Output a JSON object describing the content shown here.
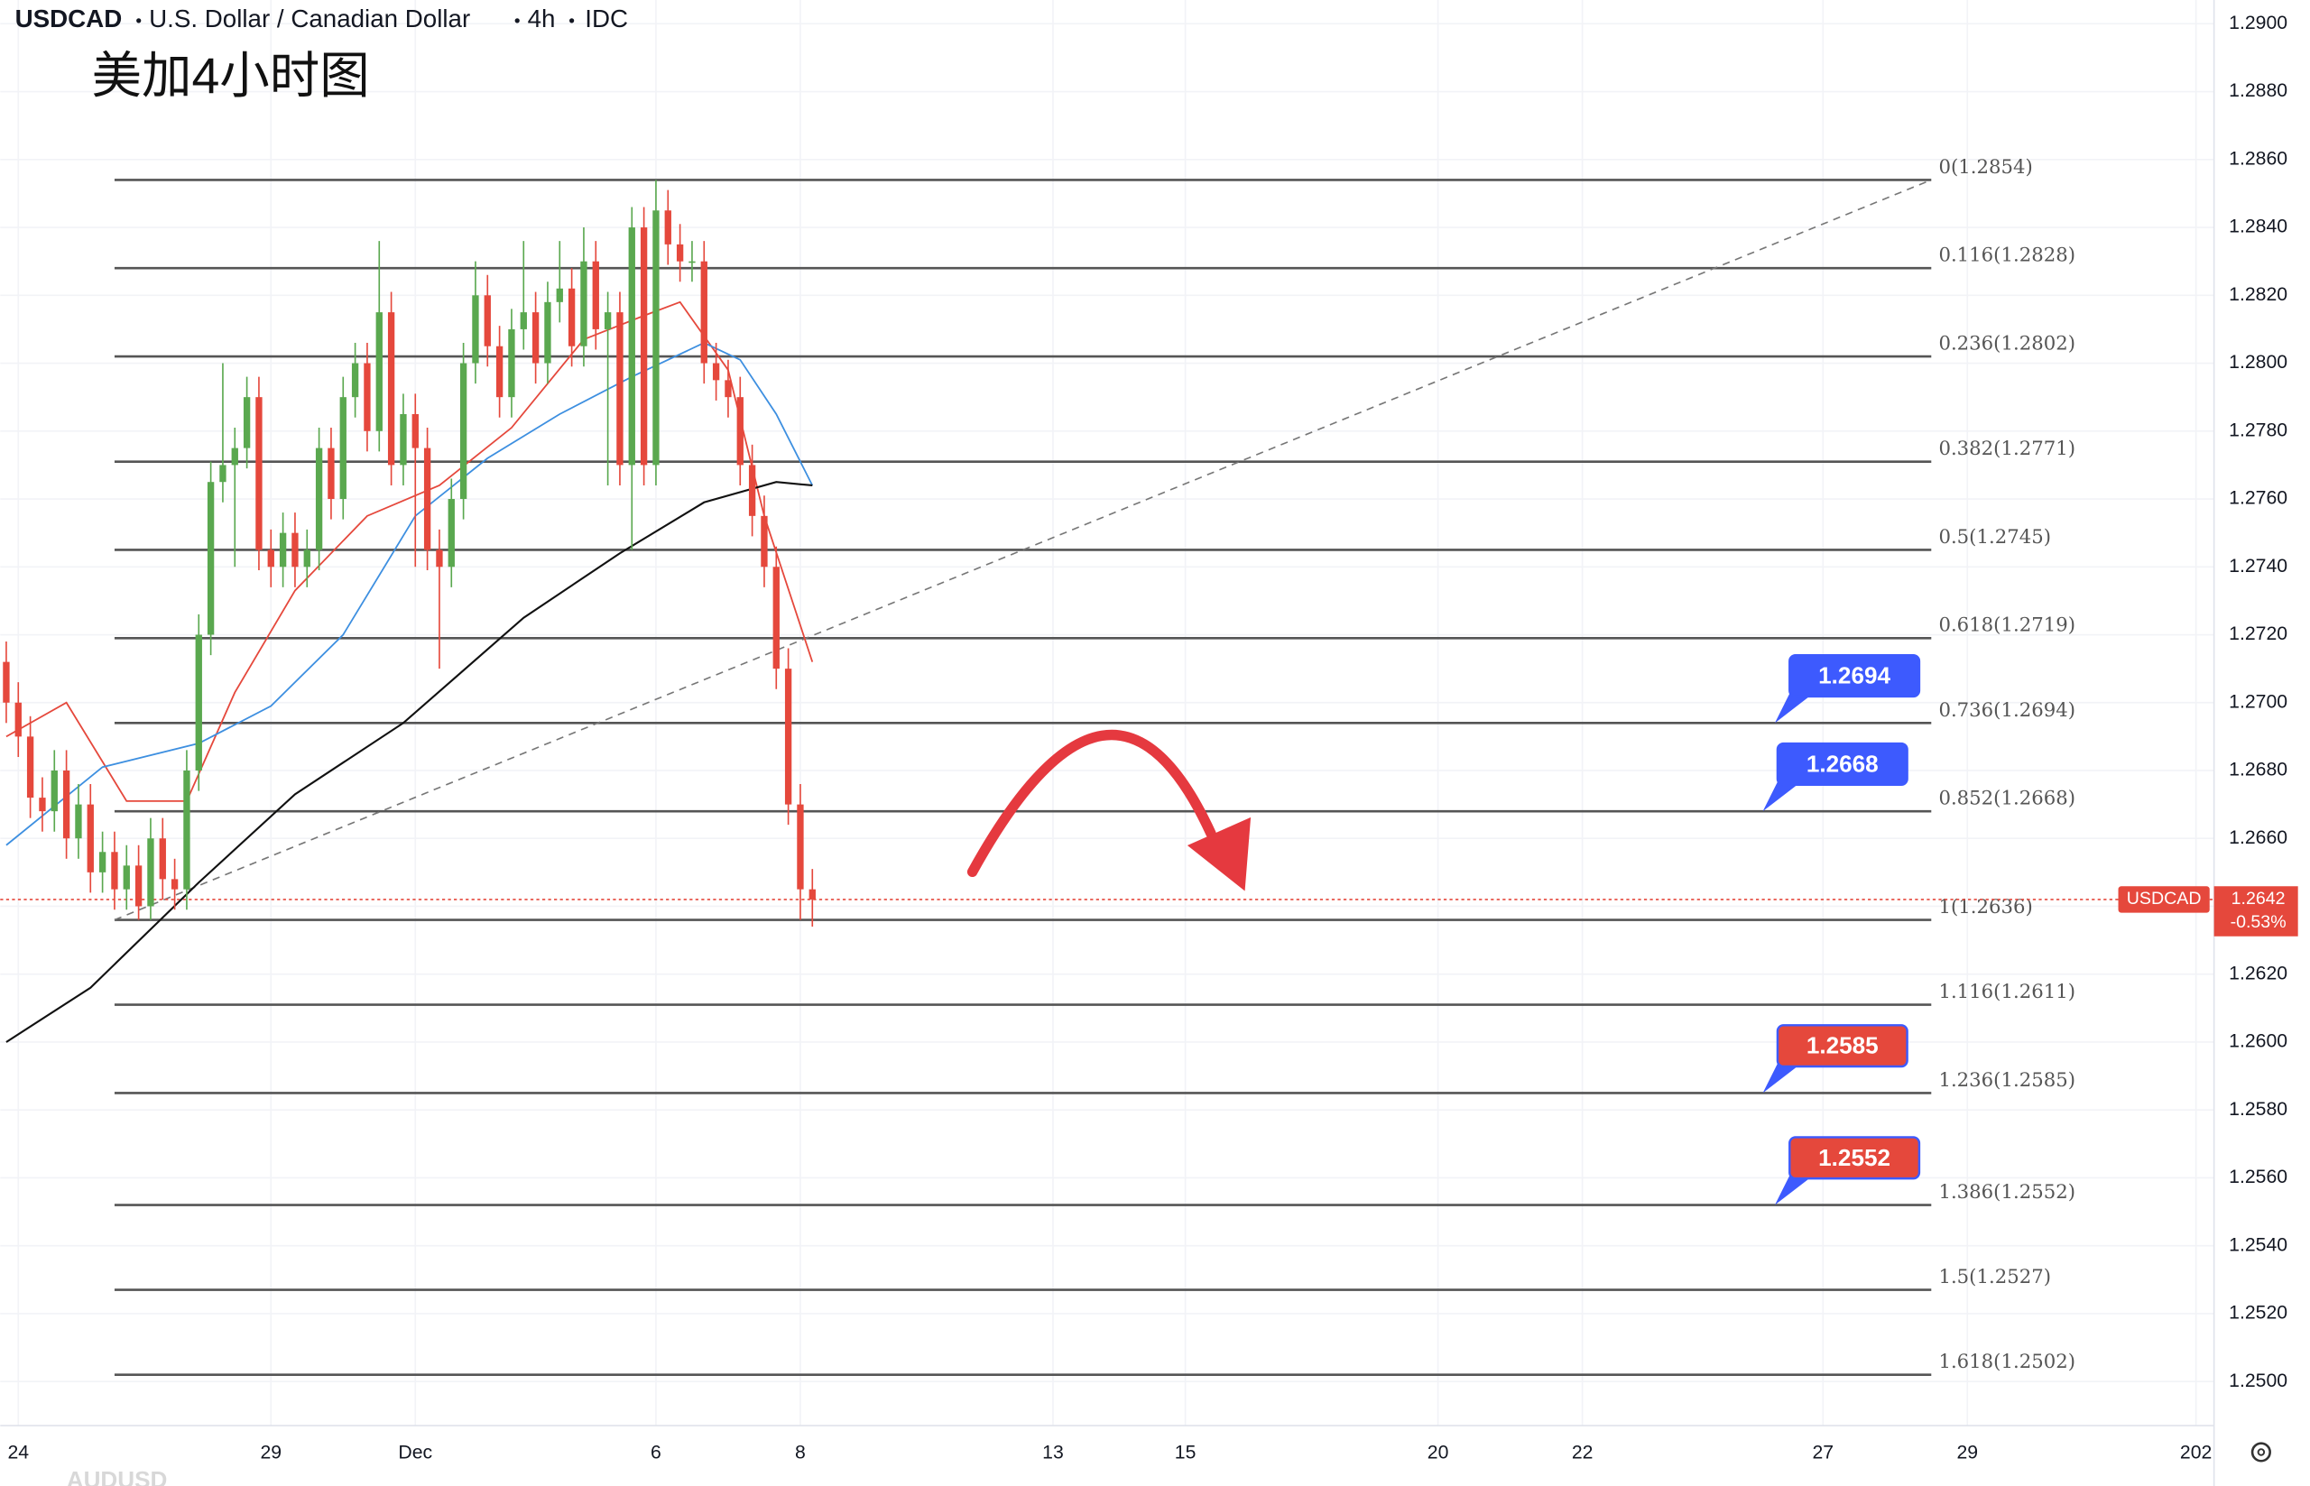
{
  "header": {
    "symbol": "USDCAD",
    "description": "U.S. Dollar / Canadian Dollar",
    "interval": "4h",
    "source": "IDC",
    "title": "美加4小时图"
  },
  "footer_text": "AUDUSD",
  "chart_data": {
    "type": "candlestick",
    "grid": true,
    "up_color": "#5aa84f",
    "down_color": "#e5483c",
    "xlim": [
      -0.5,
      183.5
    ],
    "ylim": [
      1.2487,
      1.2907
    ],
    "xticks": [
      {
        "value": 1,
        "label": "24"
      },
      {
        "value": 22,
        "label": "29"
      },
      {
        "value": 34,
        "label": "Dec"
      },
      {
        "value": 54,
        "label": "6"
      },
      {
        "value": 66,
        "label": "8"
      },
      {
        "value": 87,
        "label": "13"
      },
      {
        "value": 98,
        "label": "15"
      },
      {
        "value": 119,
        "label": "20"
      },
      {
        "value": 131,
        "label": "22"
      },
      {
        "value": 151,
        "label": "27"
      },
      {
        "value": 163,
        "label": "29"
      },
      {
        "value": 182,
        "label": "202"
      }
    ],
    "yticks": [
      {
        "value": 1.29,
        "label": "1.2900"
      },
      {
        "value": 1.288,
        "label": "1.2880"
      },
      {
        "value": 1.286,
        "label": "1.2860"
      },
      {
        "value": 1.284,
        "label": "1.2840"
      },
      {
        "value": 1.282,
        "label": "1.2820"
      },
      {
        "value": 1.28,
        "label": "1.2800"
      },
      {
        "value": 1.278,
        "label": "1.2780"
      },
      {
        "value": 1.276,
        "label": "1.2760"
      },
      {
        "value": 1.274,
        "label": "1.2740"
      },
      {
        "value": 1.272,
        "label": "1.2720"
      },
      {
        "value": 1.27,
        "label": "1.2700"
      },
      {
        "value": 1.268,
        "label": "1.2680"
      },
      {
        "value": 1.266,
        "label": "1.2660"
      },
      {
        "value": 1.264,
        "label": "1.2640"
      },
      {
        "value": 1.262,
        "label": "1.2620"
      },
      {
        "value": 1.26,
        "label": "1.2600"
      },
      {
        "value": 1.258,
        "label": "1.2580"
      },
      {
        "value": 1.256,
        "label": "1.2560"
      },
      {
        "value": 1.254,
        "label": "1.2540"
      },
      {
        "value": 1.252,
        "label": "1.2520"
      },
      {
        "value": 1.25,
        "label": "1.2500"
      }
    ],
    "open": [
      1.2712,
      1.27,
      1.269,
      1.2672,
      1.2668,
      1.268,
      1.266,
      1.267,
      1.265,
      1.2656,
      1.2645,
      1.2652,
      1.264,
      1.266,
      1.2648,
      1.2645,
      1.268,
      1.272,
      1.2765,
      1.277,
      1.2775,
      1.279,
      1.2745,
      1.274,
      1.275,
      1.274,
      1.2745,
      1.2775,
      1.276,
      1.279,
      1.28,
      1.278,
      1.2815,
      1.277,
      1.2785,
      1.2775,
      1.2745,
      1.274,
      1.276,
      1.28,
      1.282,
      1.2805,
      1.279,
      1.281,
      1.2815,
      1.28,
      1.2818,
      1.2822,
      1.2805,
      1.283,
      1.281,
      1.2815,
      1.277,
      1.284,
      1.277,
      1.2845,
      1.2835,
      1.283,
      1.283,
      1.28,
      1.2795,
      1.279,
      1.277,
      1.2755,
      1.274,
      1.271,
      1.267,
      1.2645
    ],
    "high": [
      1.2718,
      1.2706,
      1.2696,
      1.2678,
      1.2686,
      1.2686,
      1.2676,
      1.2676,
      1.2662,
      1.2662,
      1.2658,
      1.2658,
      1.2666,
      1.2666,
      1.2654,
      1.2686,
      1.2726,
      1.2771,
      1.28,
      1.2781,
      1.2796,
      1.2796,
      1.2751,
      1.2756,
      1.2756,
      1.2751,
      1.2781,
      1.2781,
      1.2796,
      1.2806,
      1.2806,
      1.2836,
      1.2821,
      1.2791,
      1.2791,
      1.2781,
      1.2751,
      1.2766,
      1.2806,
      1.283,
      1.2826,
      1.2811,
      1.2816,
      1.2836,
      1.2821,
      1.2824,
      1.2836,
      1.2828,
      1.284,
      1.2836,
      1.2821,
      1.2821,
      1.2846,
      1.2846,
      1.2854,
      1.2851,
      1.2841,
      1.2836,
      1.2836,
      1.2806,
      1.2801,
      1.2796,
      1.2776,
      1.2761,
      1.2746,
      1.2716,
      1.2676,
      1.2651
    ],
    "low": [
      1.2694,
      1.2684,
      1.2666,
      1.2662,
      1.2662,
      1.2654,
      1.2654,
      1.2644,
      1.2644,
      1.2639,
      1.2639,
      1.2636,
      1.2636,
      1.2642,
      1.2639,
      1.2639,
      1.2674,
      1.2714,
      1.2759,
      1.274,
      1.2769,
      1.2739,
      1.2734,
      1.2734,
      1.2734,
      1.2734,
      1.2739,
      1.2754,
      1.2754,
      1.2784,
      1.2774,
      1.2774,
      1.2764,
      1.2764,
      1.274,
      1.2739,
      1.271,
      1.2734,
      1.2754,
      1.2794,
      1.2799,
      1.2784,
      1.2784,
      1.2804,
      1.2794,
      1.2794,
      1.2812,
      1.2799,
      1.2799,
      1.2804,
      1.2764,
      1.2764,
      1.2745,
      1.2764,
      1.2764,
      1.2829,
      1.2824,
      1.2824,
      1.2794,
      1.2789,
      1.2784,
      1.2764,
      1.2749,
      1.2734,
      1.2704,
      1.2664,
      1.2636,
      1.2634
    ],
    "close": [
      1.27,
      1.269,
      1.2672,
      1.2668,
      1.268,
      1.266,
      1.267,
      1.265,
      1.2656,
      1.2645,
      1.2652,
      1.264,
      1.266,
      1.2648,
      1.2645,
      1.268,
      1.272,
      1.2765,
      1.277,
      1.2775,
      1.279,
      1.2745,
      1.274,
      1.275,
      1.274,
      1.2745,
      1.2775,
      1.276,
      1.279,
      1.28,
      1.278,
      1.2815,
      1.277,
      1.2785,
      1.2775,
      1.2745,
      1.274,
      1.276,
      1.28,
      1.282,
      1.2805,
      1.279,
      1.281,
      1.2815,
      1.28,
      1.2818,
      1.2822,
      1.2805,
      1.283,
      1.281,
      1.2815,
      1.277,
      1.284,
      1.277,
      1.2845,
      1.2835,
      1.283,
      1.283,
      1.28,
      1.2795,
      1.279,
      1.277,
      1.2755,
      1.274,
      1.271,
      1.267,
      1.2645,
      1.2642
    ],
    "lines": [
      {
        "color": "#e5483c",
        "x": [
          0,
          5,
          10,
          15,
          19,
          24,
          30,
          36,
          42,
          48,
          53,
          56,
          60,
          63,
          67
        ],
        "values": [
          1.269,
          1.27,
          1.2671,
          1.2671,
          1.2703,
          1.2733,
          1.2755,
          1.2764,
          1.2781,
          1.2807,
          1.2814,
          1.2818,
          1.2798,
          1.2755,
          1.2712
        ]
      },
      {
        "color": "#3d8fe0",
        "x": [
          0,
          8,
          16,
          22,
          28,
          34,
          40,
          46,
          52,
          58,
          61,
          64,
          67
        ],
        "values": [
          1.2658,
          1.2681,
          1.2688,
          1.2699,
          1.272,
          1.2755,
          1.2772,
          1.2785,
          1.2796,
          1.2806,
          1.2801,
          1.2785,
          1.2764
        ]
      },
      {
        "color": "#111111",
        "x": [
          0,
          7,
          16,
          24,
          33,
          43,
          51,
          58,
          64,
          67
        ],
        "values": [
          1.26,
          1.2616,
          1.2647,
          1.2673,
          1.2694,
          1.2725,
          1.2744,
          1.2759,
          1.2765,
          1.2764
        ]
      }
    ],
    "fib_range": [
      9,
      160
    ],
    "fib_levels": [
      {
        "label": "0(1.2854)",
        "value": 1.2854
      },
      {
        "label": "0.116(1.2828)",
        "value": 1.2828
      },
      {
        "label": "0.236(1.2802)",
        "value": 1.2802
      },
      {
        "label": "0.382(1.2771)",
        "value": 1.2771
      },
      {
        "label": "0.5(1.2745)",
        "value": 1.2745
      },
      {
        "label": "0.618(1.2719)",
        "value": 1.2719
      },
      {
        "label": "0.736(1.2694)",
        "value": 1.2694
      },
      {
        "label": "0.852(1.2668)",
        "value": 1.2668
      },
      {
        "label": "1(1.2636)",
        "value": 1.2636
      },
      {
        "label": "1.116(1.2611)",
        "value": 1.2611
      },
      {
        "label": "1.236(1.2585)",
        "value": 1.2585
      },
      {
        "label": "1.386(1.2552)",
        "value": 1.2552
      },
      {
        "label": "1.5(1.2527)",
        "value": 1.2527
      },
      {
        "label": "1.618(1.2502)",
        "value": 1.2502
      }
    ],
    "trend_line": {
      "x": [
        9,
        160
      ],
      "values": [
        1.2636,
        1.2854
      ]
    },
    "pointer_color": "#3d5afe",
    "annotations": [
      {
        "label": "1.2694",
        "value": 1.2694,
        "x": 147,
        "color": "#3d5afe"
      },
      {
        "label": "1.2668",
        "value": 1.2668,
        "x": 146,
        "color": "#3d5afe"
      },
      {
        "label": "1.2585",
        "value": 1.2585,
        "x": 146,
        "color": "#e5483c"
      },
      {
        "label": "1.2552",
        "value": 1.2552,
        "x": 147,
        "color": "#e5483c"
      }
    ],
    "last_price": {
      "name": "USDCAD",
      "value": 1.2642,
      "label": "1.2642",
      "change": "-0.53%",
      "color": "#e5483c"
    }
  }
}
